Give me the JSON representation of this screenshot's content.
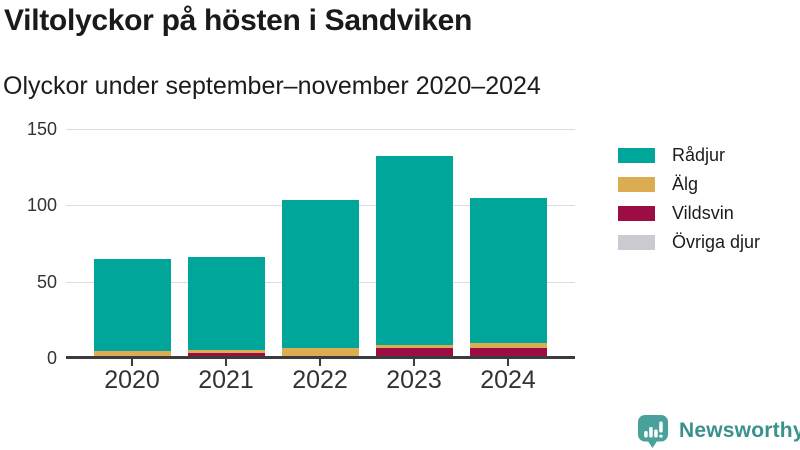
{
  "header": {
    "title": "Viltolyckor på hösten i Sandviken",
    "subtitle": "Olyckor under september–november 2020–2024"
  },
  "chart_data": {
    "type": "bar",
    "stacked": true,
    "title": "Viltolyckor på hösten i Sandviken",
    "subtitle": "Olyckor under september–november 2020–2024",
    "categories": [
      "2020",
      "2021",
      "2022",
      "2023",
      "2024"
    ],
    "series": [
      {
        "name": "Rådjur",
        "color": "#00A699",
        "values": [
          60,
          61,
          97,
          124,
          95
        ]
      },
      {
        "name": "Älg",
        "color": "#DBAC51",
        "values": [
          3,
          2,
          5,
          2,
          3
        ]
      },
      {
        "name": "Vildsvin",
        "color": "#9C0D45",
        "values": [
          0,
          2,
          0,
          5,
          5
        ]
      },
      {
        "name": "Övriga djur",
        "color": "#C9CBD1",
        "values": [
          0,
          0,
          0,
          0,
          0
        ]
      }
    ],
    "totals": [
      63,
      65,
      102,
      131,
      103
    ],
    "xlabel": "",
    "ylabel": "",
    "ylim": [
      0,
      150
    ],
    "yticks": [
      0,
      50,
      100,
      150
    ],
    "grid": true,
    "legend_position": "right",
    "stack_order_bottom_to_top": [
      "Övriga djur",
      "Vildsvin",
      "Älg",
      "Rådjur"
    ]
  },
  "branding": {
    "logo_text": "Newsworthy",
    "logo_text_color": "#3A918B",
    "logo_icon_color": "#48A29B"
  }
}
